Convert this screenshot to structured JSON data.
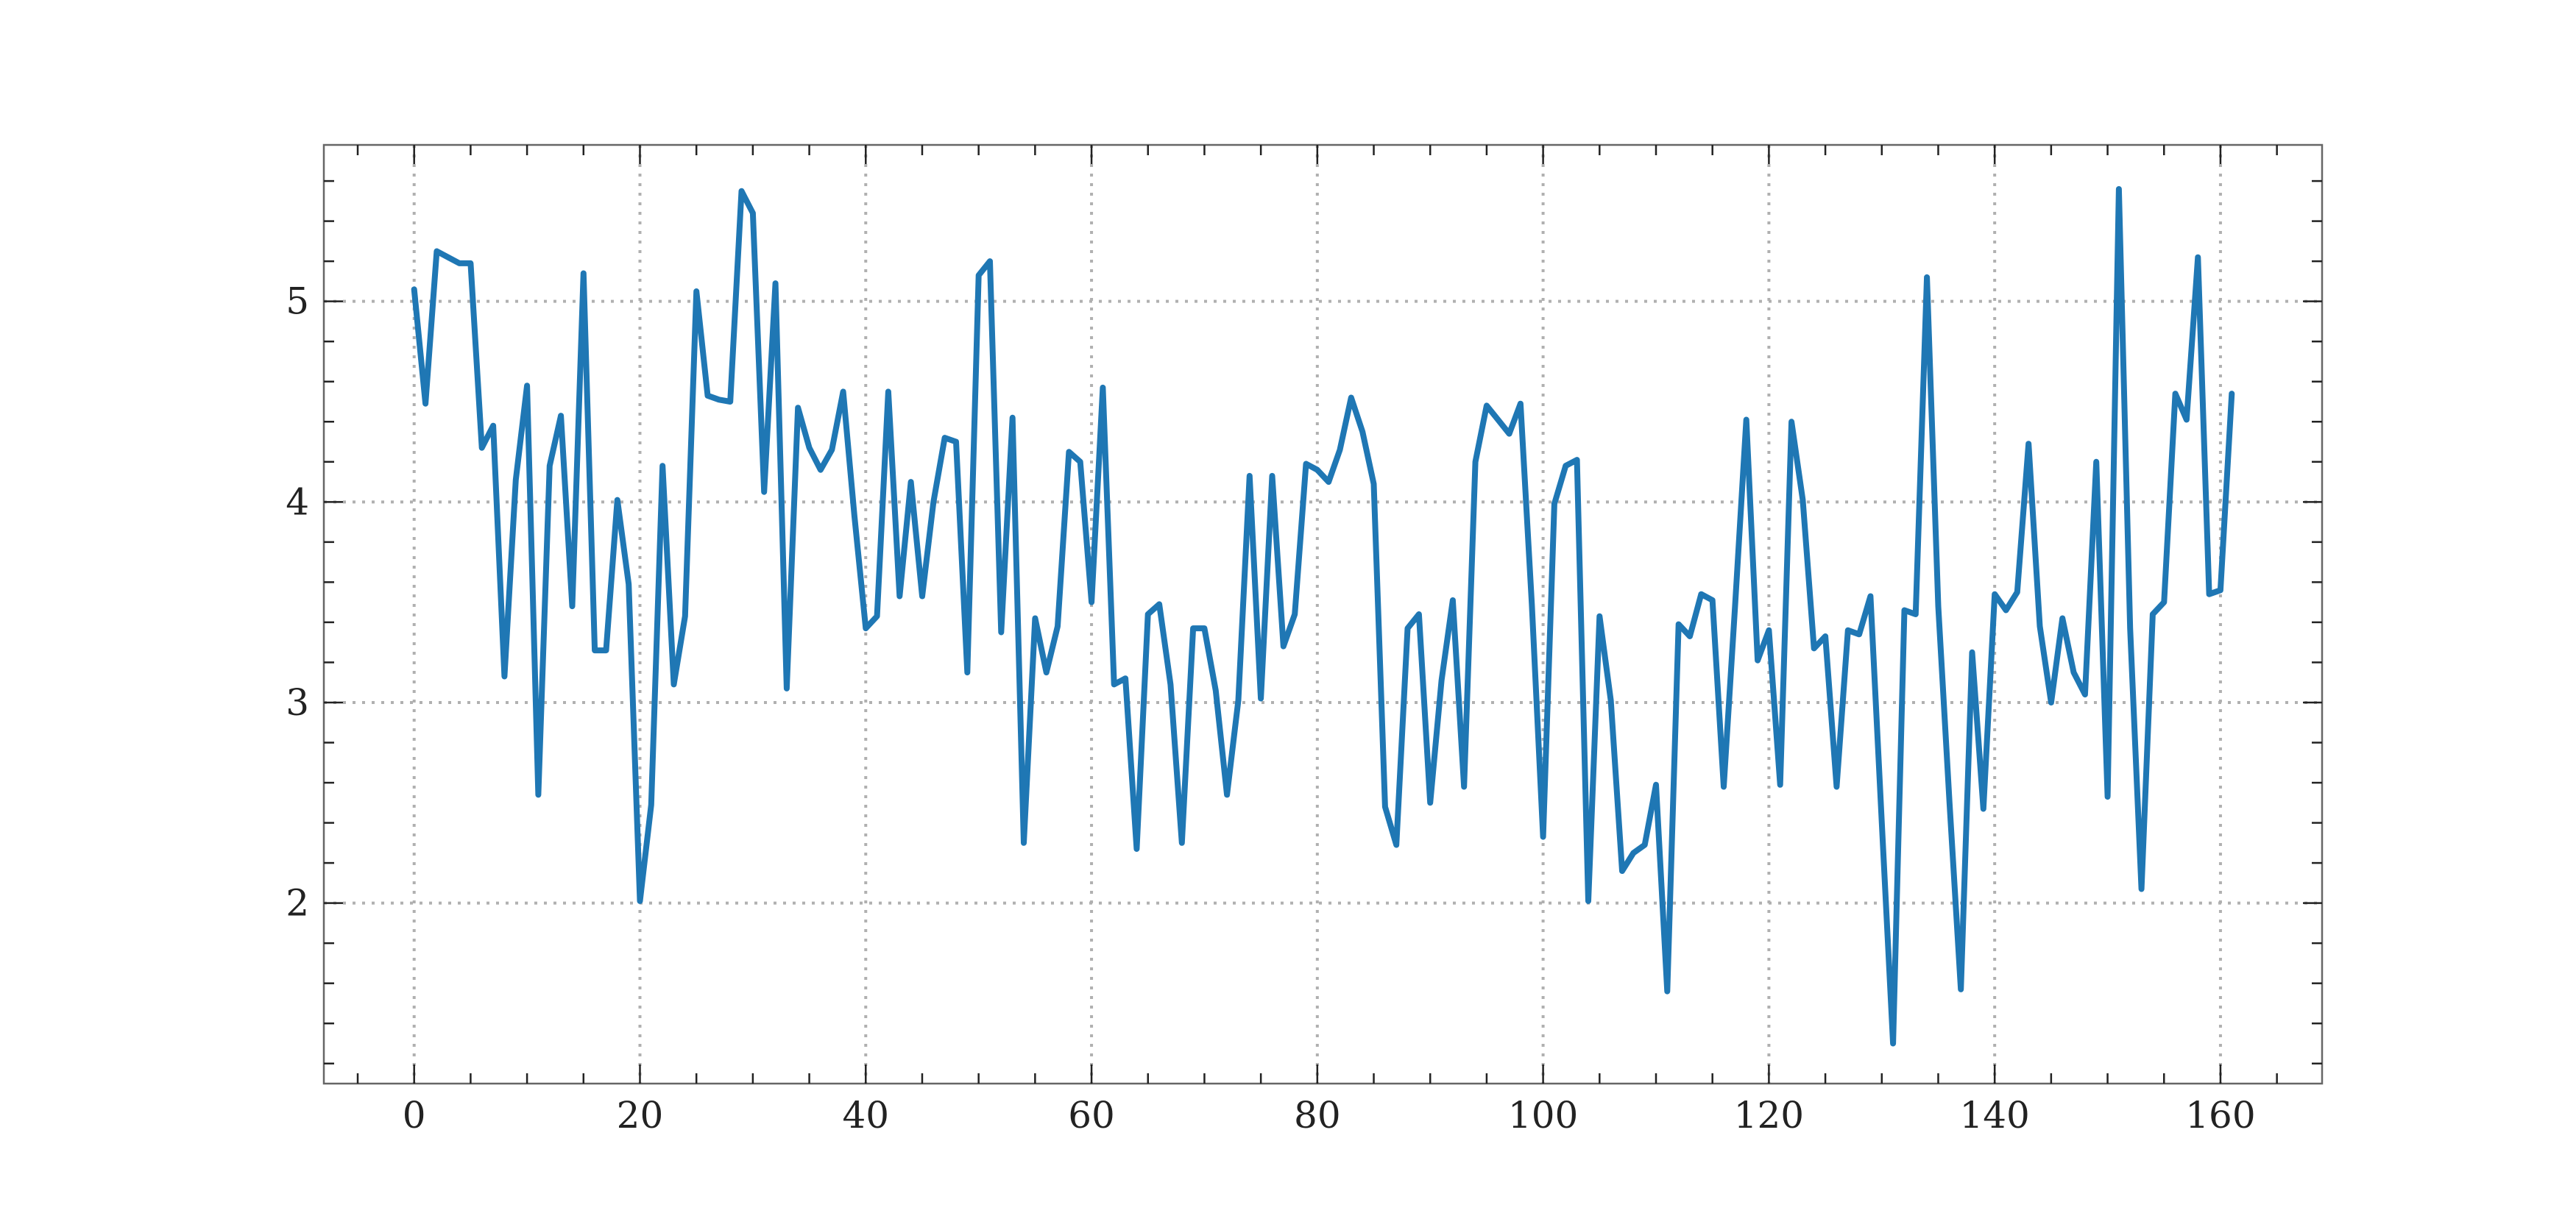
{
  "chart_data": {
    "type": "line",
    "title": "",
    "xlabel": "",
    "ylabel": "",
    "xlim": [
      -8,
      169
    ],
    "ylim": [
      1.1,
      5.78
    ],
    "xticks": [
      0,
      20,
      40,
      60,
      80,
      100,
      120,
      140,
      160
    ],
    "xtick_labels": [
      "0",
      "20",
      "40",
      "60",
      "80",
      "100",
      "120",
      "140",
      "160"
    ],
    "yticks": [
      2,
      3,
      4,
      5
    ],
    "ytick_labels": [
      "2",
      "3",
      "4",
      "5"
    ],
    "grid": true,
    "grid_style": "dotted",
    "legend": "none",
    "colors": {
      "line": "#1f77b4",
      "grid": "#b0b0b0",
      "axes": "#666666",
      "ticks": "#222222"
    },
    "series": [
      {
        "x": [
          0,
          1,
          2,
          3,
          4,
          5,
          6,
          7,
          8,
          9,
          10,
          11,
          12,
          13,
          14,
          15,
          16,
          17,
          18,
          19,
          20,
          21,
          22,
          23,
          24,
          25,
          26,
          27,
          28,
          29,
          30,
          31,
          32,
          33,
          34,
          35,
          36,
          37,
          38,
          39,
          40,
          41,
          42,
          43,
          44,
          45,
          46,
          47,
          48,
          49,
          50,
          51,
          52,
          53,
          54,
          55,
          56,
          57,
          58,
          59,
          60,
          61,
          62,
          63,
          64,
          65,
          66,
          67,
          68,
          69,
          70,
          71,
          72,
          73,
          74,
          75,
          76,
          77,
          78,
          79,
          80,
          81,
          82,
          83,
          84,
          85,
          86,
          87,
          88,
          89,
          90,
          91,
          92,
          93,
          94,
          95,
          96,
          97,
          98,
          99,
          100,
          101,
          102,
          103,
          104,
          105,
          106,
          107,
          108,
          109,
          110,
          111,
          112,
          113,
          114,
          115,
          116,
          117,
          118,
          119,
          120,
          121,
          122,
          123,
          124,
          125,
          126,
          127,
          128,
          129,
          130,
          131,
          132,
          133,
          134,
          135,
          136,
          137,
          138,
          139,
          140,
          141,
          142,
          143,
          144,
          145,
          146,
          147,
          148,
          149,
          150,
          151,
          152,
          153,
          154,
          155,
          156,
          157,
          158,
          159,
          160,
          161
        ],
        "values": [
          5.06,
          4.49,
          5.25,
          5.22,
          5.19,
          5.19,
          4.27,
          4.38,
          3.13,
          4.11,
          4.58,
          2.54,
          4.18,
          4.43,
          3.48,
          5.14,
          3.26,
          3.26,
          4.01,
          3.59,
          2.01,
          2.49,
          4.18,
          3.09,
          3.43,
          5.05,
          4.53,
          4.51,
          4.5,
          5.55,
          5.44,
          4.05,
          5.09,
          3.07,
          4.47,
          4.27,
          4.16,
          4.26,
          4.55,
          3.93,
          3.37,
          3.43,
          4.55,
          3.53,
          4.1,
          3.53,
          4.0,
          4.32,
          4.3,
          3.15,
          5.13,
          5.2,
          3.35,
          4.42,
          2.3,
          3.42,
          3.15,
          3.38,
          4.25,
          4.2,
          3.5,
          4.57,
          3.09,
          3.12,
          2.27,
          3.44,
          3.49,
          3.09,
          2.3,
          3.37,
          3.37,
          3.06,
          2.54,
          3.01,
          4.13,
          3.02,
          4.13,
          3.28,
          3.44,
          4.19,
          4.16,
          4.1,
          4.26,
          4.52,
          4.35,
          4.09,
          2.48,
          2.29,
          3.37,
          3.44,
          2.5,
          3.11,
          3.51,
          2.58,
          4.2,
          4.48,
          4.41,
          4.34,
          4.49,
          3.49,
          2.33,
          3.99,
          4.18,
          4.21,
          2.01,
          3.43,
          3.01,
          2.16,
          2.25,
          2.29,
          2.59,
          1.56,
          3.39,
          3.33,
          3.54,
          3.51,
          2.58,
          3.48,
          4.41,
          3.21,
          3.36,
          2.59,
          4.4,
          4.01,
          3.27,
          3.33,
          2.58,
          3.36,
          3.34,
          3.53,
          2.4,
          1.3,
          3.46,
          3.44,
          5.12,
          3.48,
          2.5,
          1.57,
          3.25,
          2.47,
          3.54,
          3.46,
          3.55,
          4.29,
          3.38,
          3.0,
          3.42,
          3.15,
          3.04,
          4.2,
          2.53,
          5.56,
          3.37,
          2.07,
          3.44,
          3.5,
          4.54,
          4.41,
          5.22,
          3.54,
          3.56,
          4.54
        ]
      }
    ]
  }
}
